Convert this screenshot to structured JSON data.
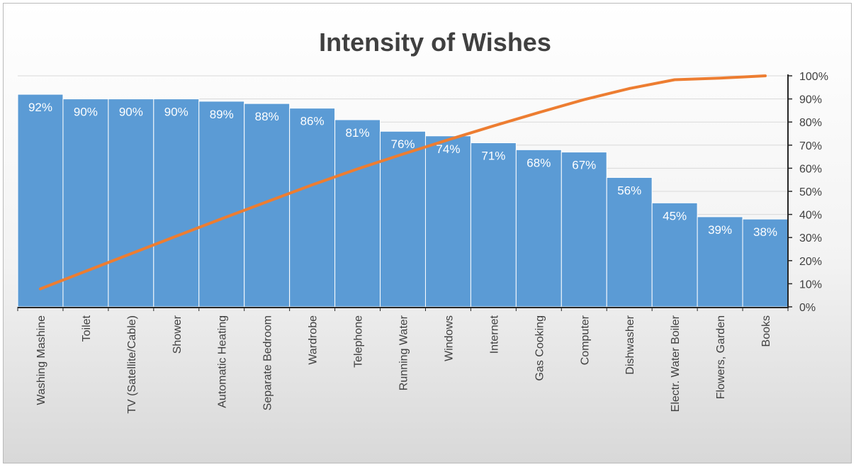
{
  "chart_data": {
    "type": "bar",
    "title": "Intensity of Wishes",
    "categories": [
      "Washing Mashine",
      "Toilet",
      "TV (Satellite/Cable)",
      "Shower",
      "Automatic Heating",
      "Separate Bedroom",
      "Wardrobe",
      "Telephone",
      "Running Water",
      "Windows",
      "Internet",
      "Gas Cooking",
      "Computer",
      "Dishwasher",
      "Electr. Water Boiler",
      "Flowers, Garden",
      "Books"
    ],
    "series": [
      {
        "type": "bar",
        "color": "#5b9bd5",
        "values": [
          92,
          90,
          90,
          90,
          89,
          88,
          86,
          81,
          76,
          74,
          71,
          68,
          67,
          56,
          45,
          39,
          38
        ],
        "data_labels": [
          "92%",
          "90%",
          "90%",
          "90%",
          "89%",
          "88%",
          "86%",
          "81%",
          "76%",
          "74%",
          "71%",
          "68%",
          "67%",
          "56%",
          "45%",
          "39%",
          "38%"
        ]
      },
      {
        "type": "line",
        "color": "#ed7d31",
        "values": [
          7.8,
          15.4,
          23.0,
          30.6,
          38.1,
          45.5,
          52.8,
          59.7,
          66.1,
          72.3,
          78.3,
          84.1,
          89.7,
          94.5,
          98.3,
          99.0,
          100
        ]
      }
    ],
    "y_axis": {
      "position": "right",
      "min": 0,
      "max": 100,
      "tick_values": [
        0,
        10,
        20,
        30,
        40,
        50,
        60,
        70,
        80,
        90,
        100
      ],
      "tick_labels": [
        "0%",
        "10%",
        "20%",
        "30%",
        "40%",
        "50%",
        "60%",
        "70%",
        "80%",
        "90%",
        "100%"
      ]
    },
    "grid": true,
    "legend": "none"
  }
}
